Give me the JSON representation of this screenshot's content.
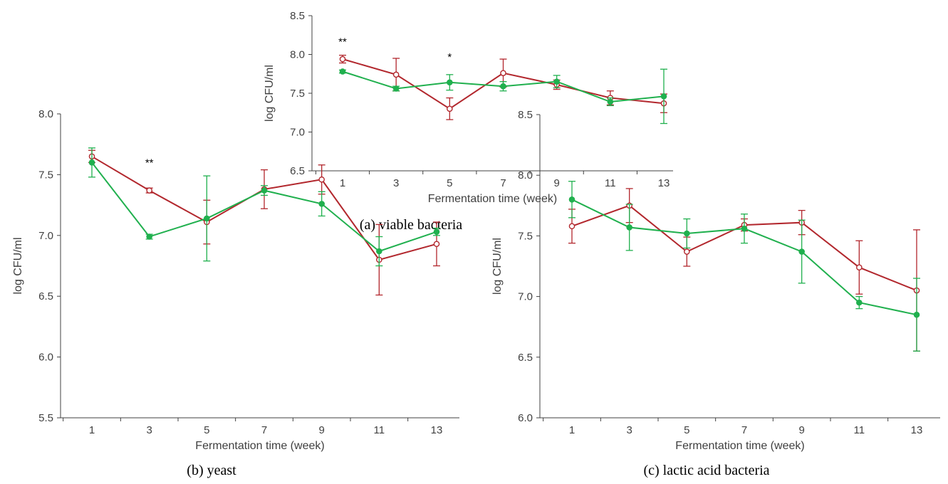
{
  "colors": {
    "red": "#B2272D",
    "green": "#20B04E",
    "axis": "#404040"
  },
  "chart_data": [
    {
      "id": "a",
      "type": "line",
      "caption": "(a) viable bacteria",
      "xlabel": "Fermentation time (week)",
      "ylabel": "log CFU/ml",
      "categories": [
        "1",
        "3",
        "5",
        "7",
        "9",
        "11",
        "13"
      ],
      "yticks": [
        "6.5",
        "7.0",
        "7.5",
        "8.0",
        "8.5"
      ],
      "ylim": [
        6.5,
        8.5
      ],
      "grid": false,
      "annotations": [
        {
          "text": "**",
          "x_index": 0,
          "y": 8.12
        },
        {
          "text": "*",
          "x_index": 2,
          "y": 7.92
        }
      ],
      "series": [
        {
          "color": "red",
          "marker": "open-circle",
          "values": [
            7.94,
            7.74,
            7.3,
            7.76,
            7.61,
            7.44,
            7.37
          ],
          "err": [
            0.05,
            0.21,
            0.14,
            0.18,
            0.06,
            0.09,
            0.12
          ]
        },
        {
          "color": "green",
          "marker": "filled-circle",
          "values": [
            7.78,
            7.56,
            7.64,
            7.59,
            7.65,
            7.39,
            7.46
          ],
          "err": [
            0.02,
            0.03,
            0.1,
            0.06,
            0.08,
            0.05,
            0.35
          ]
        }
      ]
    },
    {
      "id": "b",
      "type": "line",
      "caption": "(b) yeast",
      "xlabel": "Fermentation time (week)",
      "ylabel": "log CFU/ml",
      "categories": [
        "1",
        "3",
        "5",
        "7",
        "9",
        "11",
        "13"
      ],
      "yticks": [
        "5.5",
        "6.0",
        "6.5",
        "7.0",
        "7.5",
        "8.0"
      ],
      "ylim": [
        5.5,
        8.0
      ],
      "grid": false,
      "annotations": [
        {
          "text": "**",
          "x_index": 1,
          "y": 7.57
        }
      ],
      "series": [
        {
          "color": "red",
          "marker": "open-circle",
          "values": [
            7.65,
            7.37,
            7.11,
            7.38,
            7.46,
            6.8,
            6.93
          ],
          "err": [
            0.05,
            0.02,
            0.18,
            0.16,
            0.12,
            0.29,
            0.18
          ]
        },
        {
          "color": "green",
          "marker": "filled-circle",
          "values": [
            7.6,
            6.99,
            7.14,
            7.37,
            7.26,
            6.87,
            7.03
          ],
          "err": [
            0.12,
            0.02,
            0.35,
            0.04,
            0.1,
            0.12,
            0.03
          ]
        }
      ]
    },
    {
      "id": "c",
      "type": "line",
      "caption": "(c) lactic acid bacteria",
      "xlabel": "Fermentation time (week)",
      "ylabel": "log CFU/ml",
      "categories": [
        "1",
        "3",
        "5",
        "7",
        "9",
        "11",
        "13"
      ],
      "yticks": [
        "6.0",
        "6.5",
        "7.0",
        "7.5",
        "8.0",
        "8.5"
      ],
      "ylim": [
        6.0,
        8.5
      ],
      "grid": false,
      "annotations": [],
      "series": [
        {
          "color": "red",
          "marker": "open-circle",
          "values": [
            7.58,
            7.75,
            7.37,
            7.59,
            7.61,
            7.24,
            7.05
          ],
          "err": [
            0.14,
            0.14,
            0.12,
            0.05,
            0.1,
            0.22,
            0.5
          ]
        },
        {
          "color": "green",
          "marker": "filled-circle",
          "values": [
            7.8,
            7.57,
            7.52,
            7.56,
            7.37,
            6.95,
            6.85
          ],
          "err": [
            0.15,
            0.19,
            0.12,
            0.12,
            0.26,
            0.05,
            0.3
          ]
        }
      ]
    }
  ]
}
